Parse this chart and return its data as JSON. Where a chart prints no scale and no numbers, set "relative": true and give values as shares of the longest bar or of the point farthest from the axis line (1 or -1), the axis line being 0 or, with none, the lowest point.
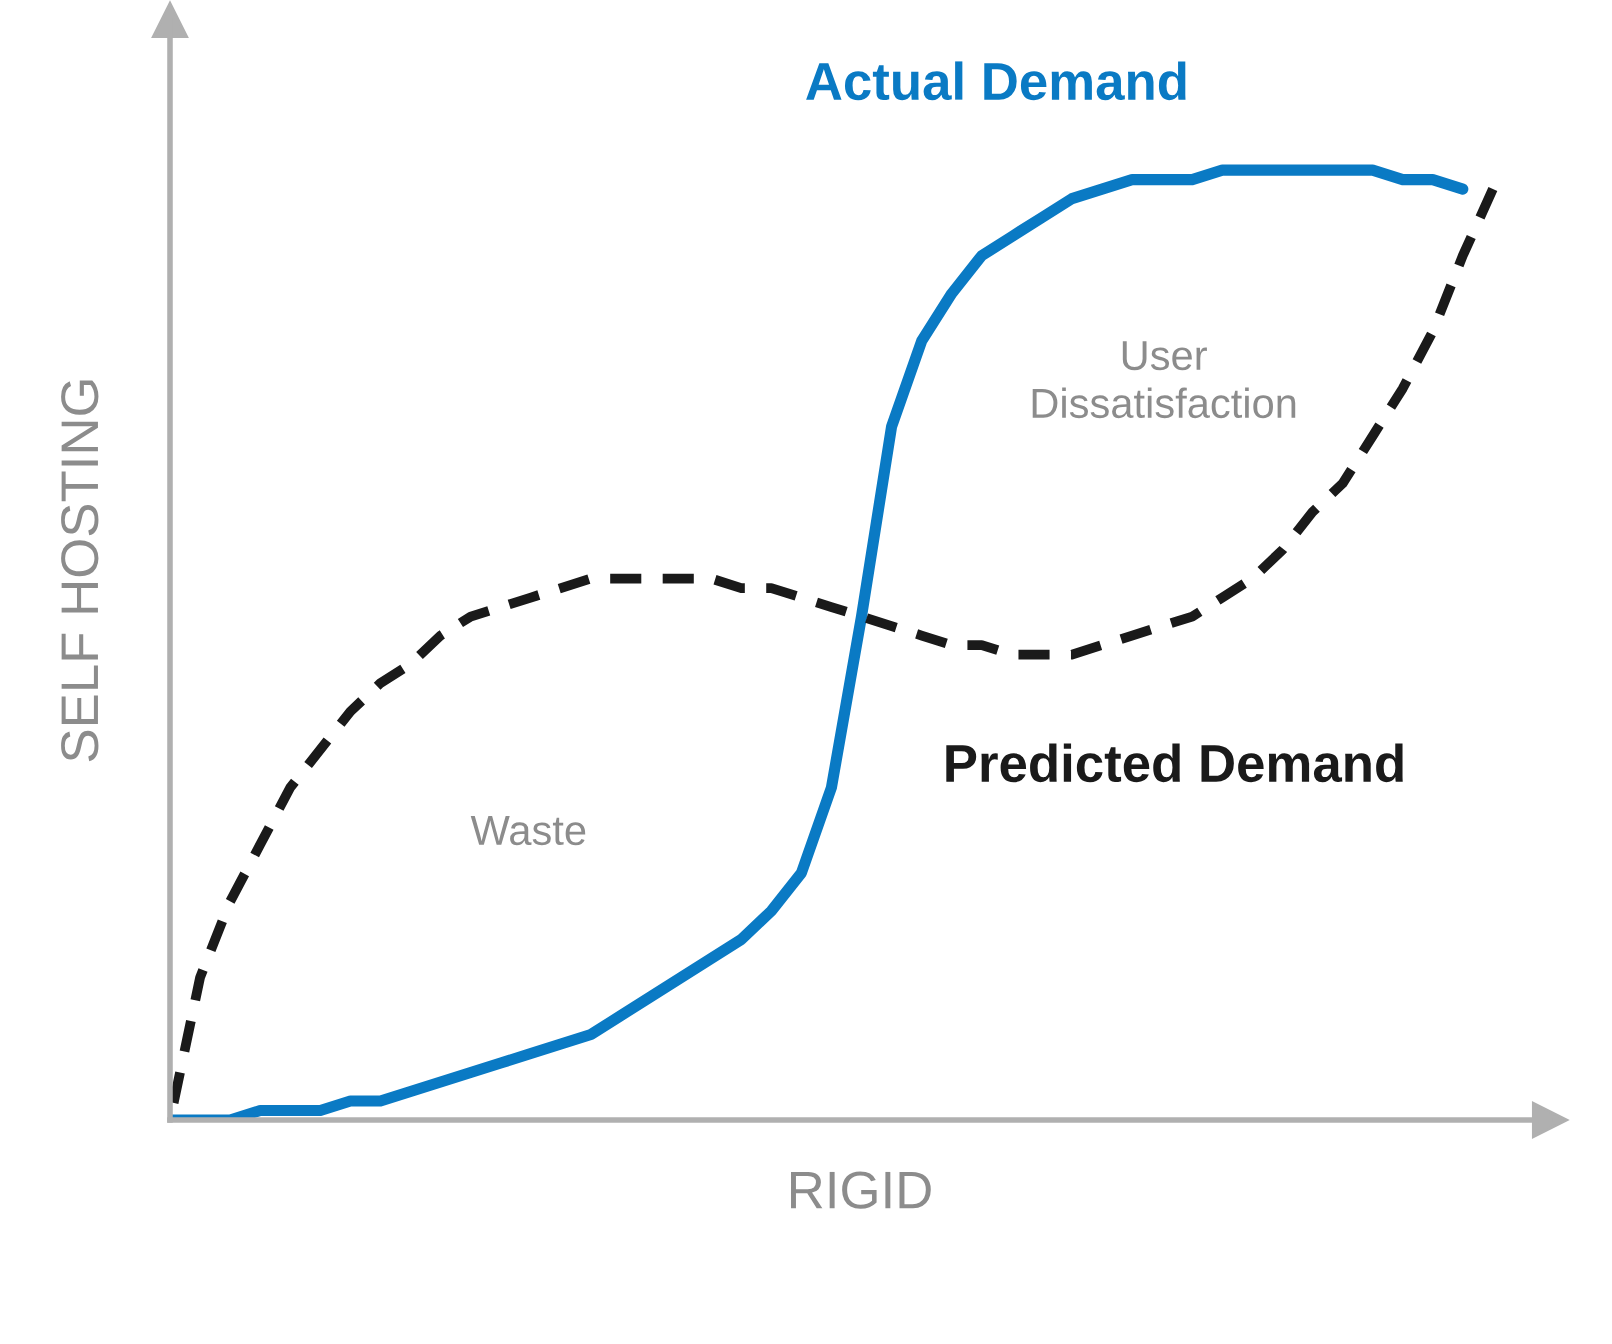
{
  "chart_data": {
    "type": "line",
    "relative": true,
    "xlabel": "RIGID",
    "ylabel": "SELF HOSTING",
    "legend": false,
    "categories": [
      null,
      null,
      null,
      null,
      null,
      null,
      null,
      null,
      null,
      null,
      null,
      null,
      null,
      null,
      null,
      null,
      null,
      null,
      null,
      null,
      null,
      null,
      null,
      null,
      null,
      null,
      null,
      null,
      null,
      null,
      null,
      null,
      null,
      null,
      null,
      null,
      null,
      null,
      null,
      null,
      null,
      null,
      null,
      null,
      null
    ],
    "series": [
      {
        "name": "Actual Demand",
        "color": "#0a7ac4",
        "line_style": "solid",
        "values": [
          0,
          0.0,
          0.0,
          0.01,
          0.01,
          0.01,
          0.02,
          0.02,
          0.03,
          0.04,
          0.05,
          0.06,
          0.07,
          0.08,
          0.09,
          0.11,
          0.13,
          0.15,
          0.17,
          0.19,
          0.22,
          0.26,
          0.35,
          0.53,
          0.73,
          0.82,
          0.87,
          0.91,
          0.93,
          0.95,
          0.97,
          0.98,
          0.99,
          0.99,
          0.99,
          1.0,
          1.0,
          1.0,
          1.0,
          1.0,
          1.0,
          0.99,
          0.99,
          0.98,
          null
        ]
      },
      {
        "name": "Predicted Demand",
        "color": "#1a1a1a",
        "line_style": "dashed",
        "values": [
          0,
          0.15,
          0.23,
          0.29,
          0.35,
          0.39,
          0.43,
          0.46,
          0.48,
          0.51,
          0.53,
          0.54,
          0.55,
          0.56,
          0.57,
          0.57,
          0.57,
          0.57,
          0.57,
          0.56,
          0.56,
          0.55,
          0.54,
          0.53,
          0.52,
          0.51,
          0.5,
          0.5,
          0.49,
          0.49,
          0.49,
          0.5,
          0.51,
          0.52,
          0.53,
          0.55,
          0.57,
          0.6,
          0.64,
          0.67,
          0.72,
          0.77,
          0.83,
          0.91,
          0.98
        ]
      }
    ],
    "annotations": [
      "Waste",
      "User\nDissatisfaction"
    ]
  }
}
